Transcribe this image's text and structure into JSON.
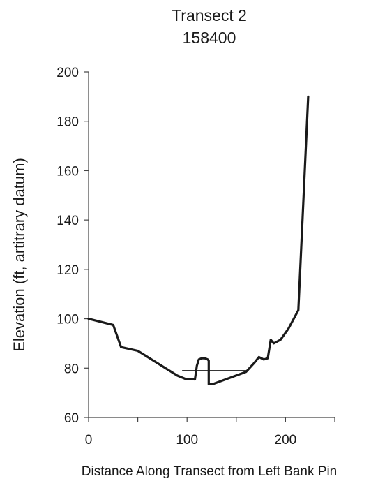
{
  "chart_data": {
    "type": "line",
    "title": "Transect 2",
    "subtitle": "158400",
    "xlabel": "Distance Along Transect from Left Bank Pin",
    "ylabel": "Elevation (ft, artitrary datum)",
    "xlim": [
      0,
      250
    ],
    "ylim": [
      60,
      200
    ],
    "x_ticks": [
      0,
      100,
      200
    ],
    "x_tick_labels": [
      "0",
      "100",
      "200"
    ],
    "y_ticks": [
      60,
      80,
      100,
      120,
      140,
      160,
      180,
      200
    ],
    "y_tick_labels": [
      "60",
      "80",
      "100",
      "120",
      "140",
      "160",
      "180",
      "200"
    ],
    "grid": false,
    "legend": "none",
    "series": [
      {
        "color": "#1a1a1a",
        "x": [
          0,
          25,
          33,
          50,
          90,
          98,
          108,
          110,
          112,
          115,
          118,
          121,
          122,
          122,
          126,
          160,
          168,
          173,
          178,
          182,
          185,
          188,
          195,
          203,
          213,
          223
        ],
        "y": [
          100,
          97.5,
          88.5,
          87,
          77,
          75.7,
          75.4,
          81,
          83.5,
          84,
          84,
          83.5,
          83,
          73.5,
          73.5,
          78.5,
          82,
          84.5,
          83.5,
          84,
          91.5,
          90,
          91.5,
          96,
          103.5,
          190
        ]
      }
    ],
    "annotations": [
      {
        "type": "water-surface-line",
        "x": [
          95,
          160
        ],
        "y": [
          79,
          79
        ],
        "color": "#1a1a1a"
      }
    ]
  }
}
